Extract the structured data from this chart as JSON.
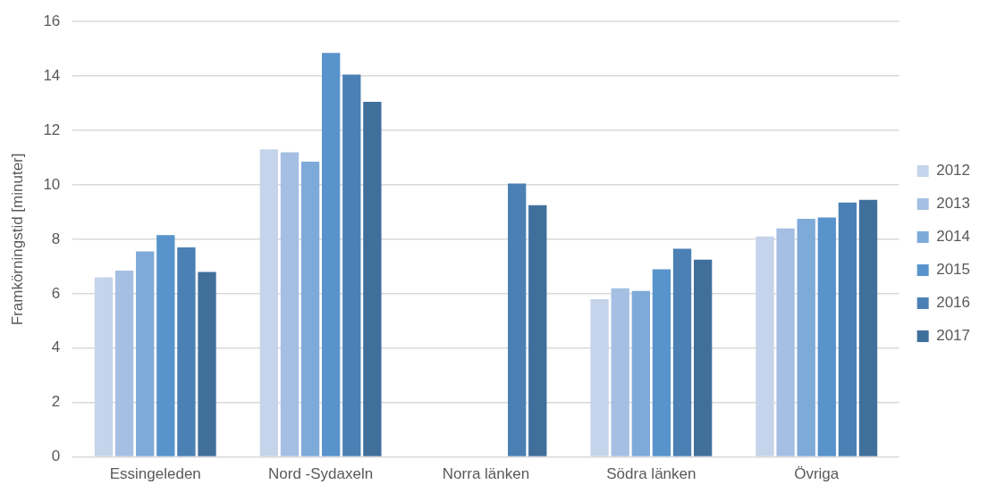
{
  "chart_data": {
    "type": "bar",
    "ylabel": "Framkörningstid [minuter]",
    "categories": [
      "Essingeleden",
      "Nord -Sydaxeln",
      "Norra länken",
      "Södra länken",
      "Övriga"
    ],
    "series": [
      {
        "name": "2012",
        "color": "#c5d4ea",
        "values": [
          6.6,
          11.3,
          null,
          5.8,
          8.1
        ]
      },
      {
        "name": "2013",
        "color": "#a5bfe3",
        "values": [
          6.85,
          11.2,
          null,
          6.2,
          8.4
        ]
      },
      {
        "name": "2014",
        "color": "#7eaad9",
        "values": [
          7.55,
          10.85,
          null,
          6.1,
          8.75
        ]
      },
      {
        "name": "2015",
        "color": "#5894cb",
        "values": [
          8.15,
          14.85,
          null,
          6.9,
          8.8
        ]
      },
      {
        "name": "2016",
        "color": "#4b80b4",
        "values": [
          7.7,
          14.05,
          10.05,
          7.65,
          9.35
        ]
      },
      {
        "name": "2017",
        "color": "#416f9c",
        "values": [
          6.8,
          13.05,
          9.25,
          7.25,
          9.45
        ]
      }
    ],
    "ylim": [
      0,
      16
    ],
    "yticks": [
      0,
      2,
      4,
      6,
      8,
      10,
      12,
      14,
      16
    ],
    "grid": "y",
    "legend": "right"
  }
}
